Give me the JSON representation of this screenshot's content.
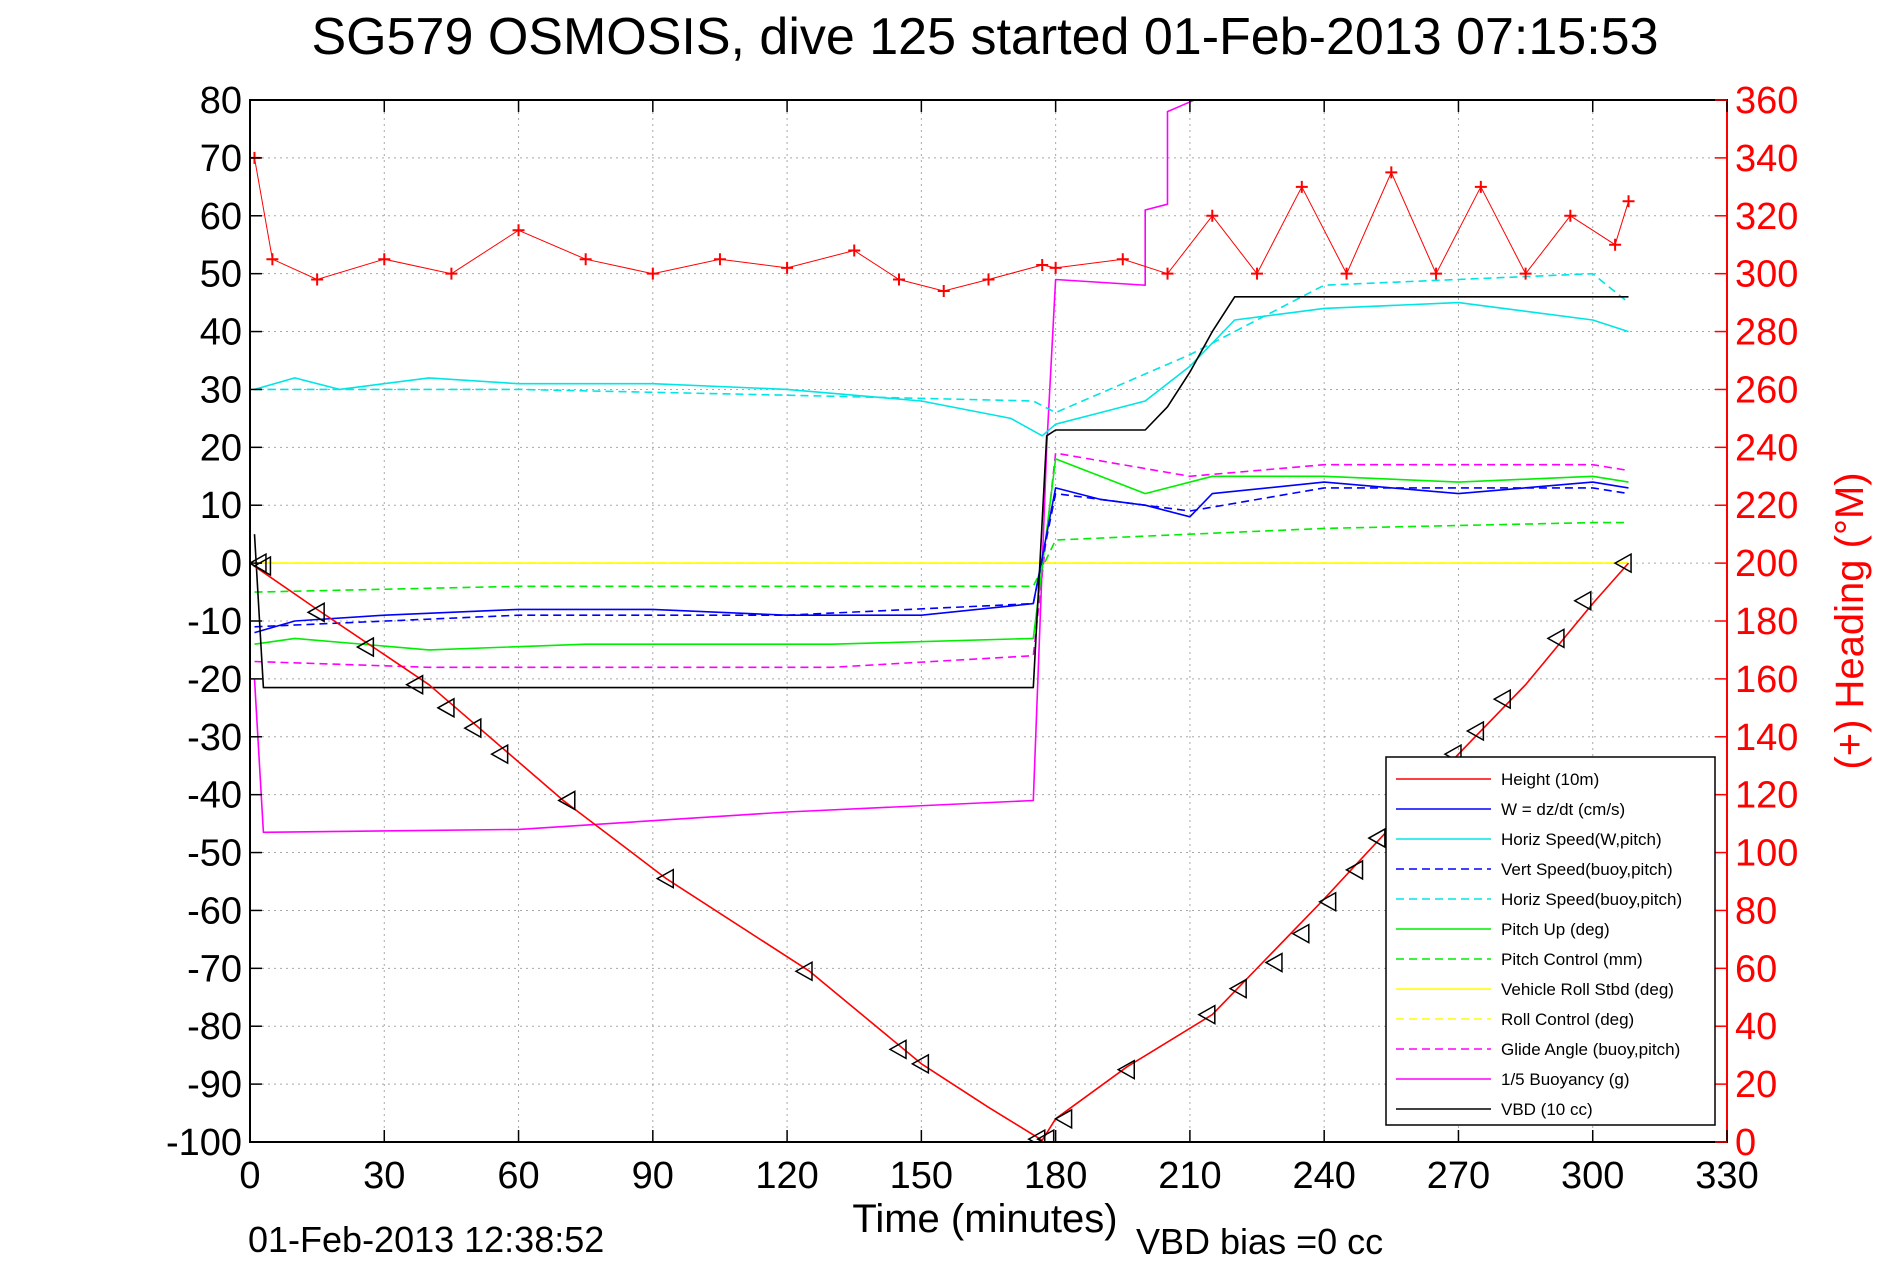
{
  "chart_data": {
    "type": "line",
    "title": "SG579 OSMOSIS, dive 125 started 01-Feb-2013 07:15:53",
    "xlabel": "Time (minutes)",
    "ylabel": "",
    "y2label": "(+) Heading (°M)",
    "xlim": [
      0,
      330
    ],
    "ylim": [
      -100,
      80
    ],
    "y2lim": [
      0,
      360
    ],
    "xticks": [
      "0",
      "30",
      "60",
      "90",
      "120",
      "150",
      "180",
      "210",
      "240",
      "270",
      "300",
      "330"
    ],
    "yticks": [
      "80",
      "70",
      "60",
      "50",
      "40",
      "30",
      "20",
      "10",
      "0",
      "-10",
      "-20",
      "-30",
      "-40",
      "-50",
      "-60",
      "-70",
      "-80",
      "-90",
      "-100"
    ],
    "y2ticks": [
      "360",
      "340",
      "320",
      "300",
      "280",
      "260",
      "240",
      "220",
      "200",
      "180",
      "160",
      "140",
      "120",
      "100",
      "80",
      "60",
      "40",
      "20",
      "0"
    ],
    "grid": true,
    "legend_position": "lower-right",
    "footer_left": "01-Feb-2013 12:38:52",
    "footer_right": "VBD bias =0 cc",
    "series": [
      {
        "name": "Height (10m)",
        "color": "#ff0000",
        "dash": "solid",
        "x": [
          0,
          15,
          40,
          70,
          93,
          125,
          150,
          165,
          177,
          180,
          196,
          215,
          240,
          270,
          285,
          300,
          308
        ],
        "y": [
          0,
          -8,
          -21,
          -41,
          -54.5,
          -70.5,
          -86.5,
          -94,
          -99.7,
          -96,
          -87,
          -78,
          -58,
          -33,
          -21,
          -7,
          0
        ]
      },
      {
        "name": "W = dz/dt (cm/s)",
        "color": "#0000ff",
        "dash": "solid",
        "x": [
          1,
          10,
          30,
          60,
          90,
          120,
          150,
          175,
          180,
          190,
          200,
          210,
          215,
          240,
          270,
          300,
          308
        ],
        "y": [
          -12,
          -10,
          -9,
          -8,
          -8,
          -9,
          -9,
          -7,
          13,
          11,
          10,
          8,
          12,
          14,
          12,
          14,
          13
        ]
      },
      {
        "name": "Horiz Speed(W,pitch)",
        "color": "#00e5e5",
        "dash": "solid",
        "x": [
          1,
          10,
          20,
          40,
          60,
          90,
          120,
          150,
          170,
          177,
          180,
          190,
          200,
          210,
          220,
          240,
          270,
          300,
          308
        ],
        "y": [
          30,
          32,
          30,
          32,
          31,
          31,
          30,
          28,
          25,
          22,
          24,
          26,
          28,
          34,
          42,
          44,
          45,
          42,
          40
        ]
      },
      {
        "name": "Vert Speed(buoy,pitch)",
        "color": "#0000ff",
        "dash": "dash",
        "x": [
          1,
          60,
          120,
          175,
          180,
          210,
          240,
          300,
          308
        ],
        "y": [
          -11,
          -9,
          -9,
          -7,
          12,
          9,
          13,
          13,
          12
        ]
      },
      {
        "name": "Horiz Speed(buoy,pitch)",
        "color": "#00e5e5",
        "dash": "dash",
        "x": [
          1,
          60,
          120,
          175,
          180,
          210,
          240,
          300,
          308
        ],
        "y": [
          30,
          30,
          29,
          28,
          26,
          36,
          48,
          50,
          45
        ]
      },
      {
        "name": "Pitch Up (deg)",
        "color": "#00ee00",
        "dash": "solid",
        "x": [
          1,
          10,
          40,
          75,
          130,
          175,
          180,
          200,
          215,
          240,
          270,
          300,
          308
        ],
        "y": [
          -14,
          -13,
          -15,
          -14,
          -14,
          -13,
          18,
          12,
          15,
          15,
          14,
          15,
          14
        ]
      },
      {
        "name": "Pitch Control (mm)",
        "color": "#00ee00",
        "dash": "dash",
        "x": [
          1,
          60,
          120,
          175,
          180,
          210,
          240,
          300,
          308
        ],
        "y": [
          -5,
          -4,
          -4,
          -4,
          4,
          5,
          6,
          7,
          7
        ]
      },
      {
        "name": "Vehicle Roll Stbd (deg)",
        "color": "#ffff00",
        "dash": "solid",
        "x": [
          1,
          60,
          120,
          175,
          180,
          210,
          240,
          270,
          300,
          308
        ],
        "y": [
          0,
          0,
          0,
          0,
          0,
          0,
          0,
          0,
          0,
          0
        ]
      },
      {
        "name": "Roll Control (deg)",
        "color": "#ffff00",
        "dash": "dash",
        "x": [
          1,
          60,
          120,
          175,
          180,
          210,
          240,
          270,
          300,
          308
        ],
        "y": [
          0,
          0,
          0,
          0,
          0,
          0,
          0,
          0,
          0,
          0
        ]
      },
      {
        "name": "Glide Angle (buoy,pitch)",
        "color": "#ff00ff",
        "dash": "dash",
        "x": [
          1,
          40,
          75,
          130,
          175,
          180,
          210,
          240,
          300,
          308
        ],
        "y": [
          -17,
          -18,
          -18,
          -18,
          -16,
          19,
          15,
          17,
          17,
          16
        ]
      },
      {
        "name": "1/5 Buoyancy (g)",
        "color": "#ff00ff",
        "dash": "solid",
        "x": [
          1,
          3,
          60,
          120,
          175,
          178,
          180,
          200,
          200,
          205,
          205,
          208,
          211
        ],
        "y": [
          -20,
          -46.5,
          -46,
          -43,
          -41,
          20,
          49,
          48,
          61,
          62,
          78,
          79,
          80
        ]
      },
      {
        "name": "VBD (10 cc)",
        "color": "#000000",
        "dash": "solid",
        "x": [
          1,
          3,
          175,
          178,
          180,
          200,
          205,
          210,
          215,
          220,
          240,
          270,
          308
        ],
        "y": [
          5,
          -21.5,
          -21.5,
          22,
          23,
          23,
          27,
          33,
          40,
          46,
          46,
          46,
          46
        ]
      }
    ],
    "heading_series": {
      "name": "(+) Heading",
      "color": "#ff0000",
      "x": [
        1,
        5,
        15,
        30,
        45,
        60,
        75,
        90,
        105,
        120,
        135,
        145,
        155,
        165,
        177,
        180,
        195,
        205,
        215,
        225,
        235,
        245,
        255,
        265,
        275,
        285,
        295,
        305,
        308
      ],
      "y": [
        340,
        305,
        298,
        305,
        300,
        315,
        305,
        300,
        305,
        302,
        308,
        298,
        294,
        298,
        303,
        302,
        305,
        300,
        320,
        300,
        330,
        300,
        335,
        300,
        330,
        300,
        320,
        310,
        325
      ]
    },
    "markers": {
      "name": "triangle markers",
      "points": [
        [
          2,
          0
        ],
        [
          3,
          -0.5
        ],
        [
          15,
          -8.5
        ],
        [
          26,
          -14.5
        ],
        [
          37,
          -21
        ],
        [
          44,
          -25
        ],
        [
          50,
          -28.5
        ],
        [
          56,
          -33
        ],
        [
          71,
          -41
        ],
        [
          93,
          -54.5
        ],
        [
          124,
          -70.5
        ],
        [
          145,
          -84
        ],
        [
          150,
          -86.5
        ],
        [
          176,
          -99.5
        ],
        [
          178,
          -99.5
        ],
        [
          182,
          -96
        ],
        [
          196,
          -87.5
        ],
        [
          214,
          -78
        ],
        [
          221,
          -73.5
        ],
        [
          229,
          -69
        ],
        [
          235,
          -64
        ],
        [
          241,
          -58.5
        ],
        [
          247,
          -53
        ],
        [
          252,
          -47.5
        ],
        [
          269,
          -33
        ],
        [
          274,
          -29
        ],
        [
          280,
          -23.5
        ],
        [
          292,
          -13
        ],
        [
          298,
          -6.5
        ],
        [
          307,
          0
        ]
      ]
    }
  }
}
